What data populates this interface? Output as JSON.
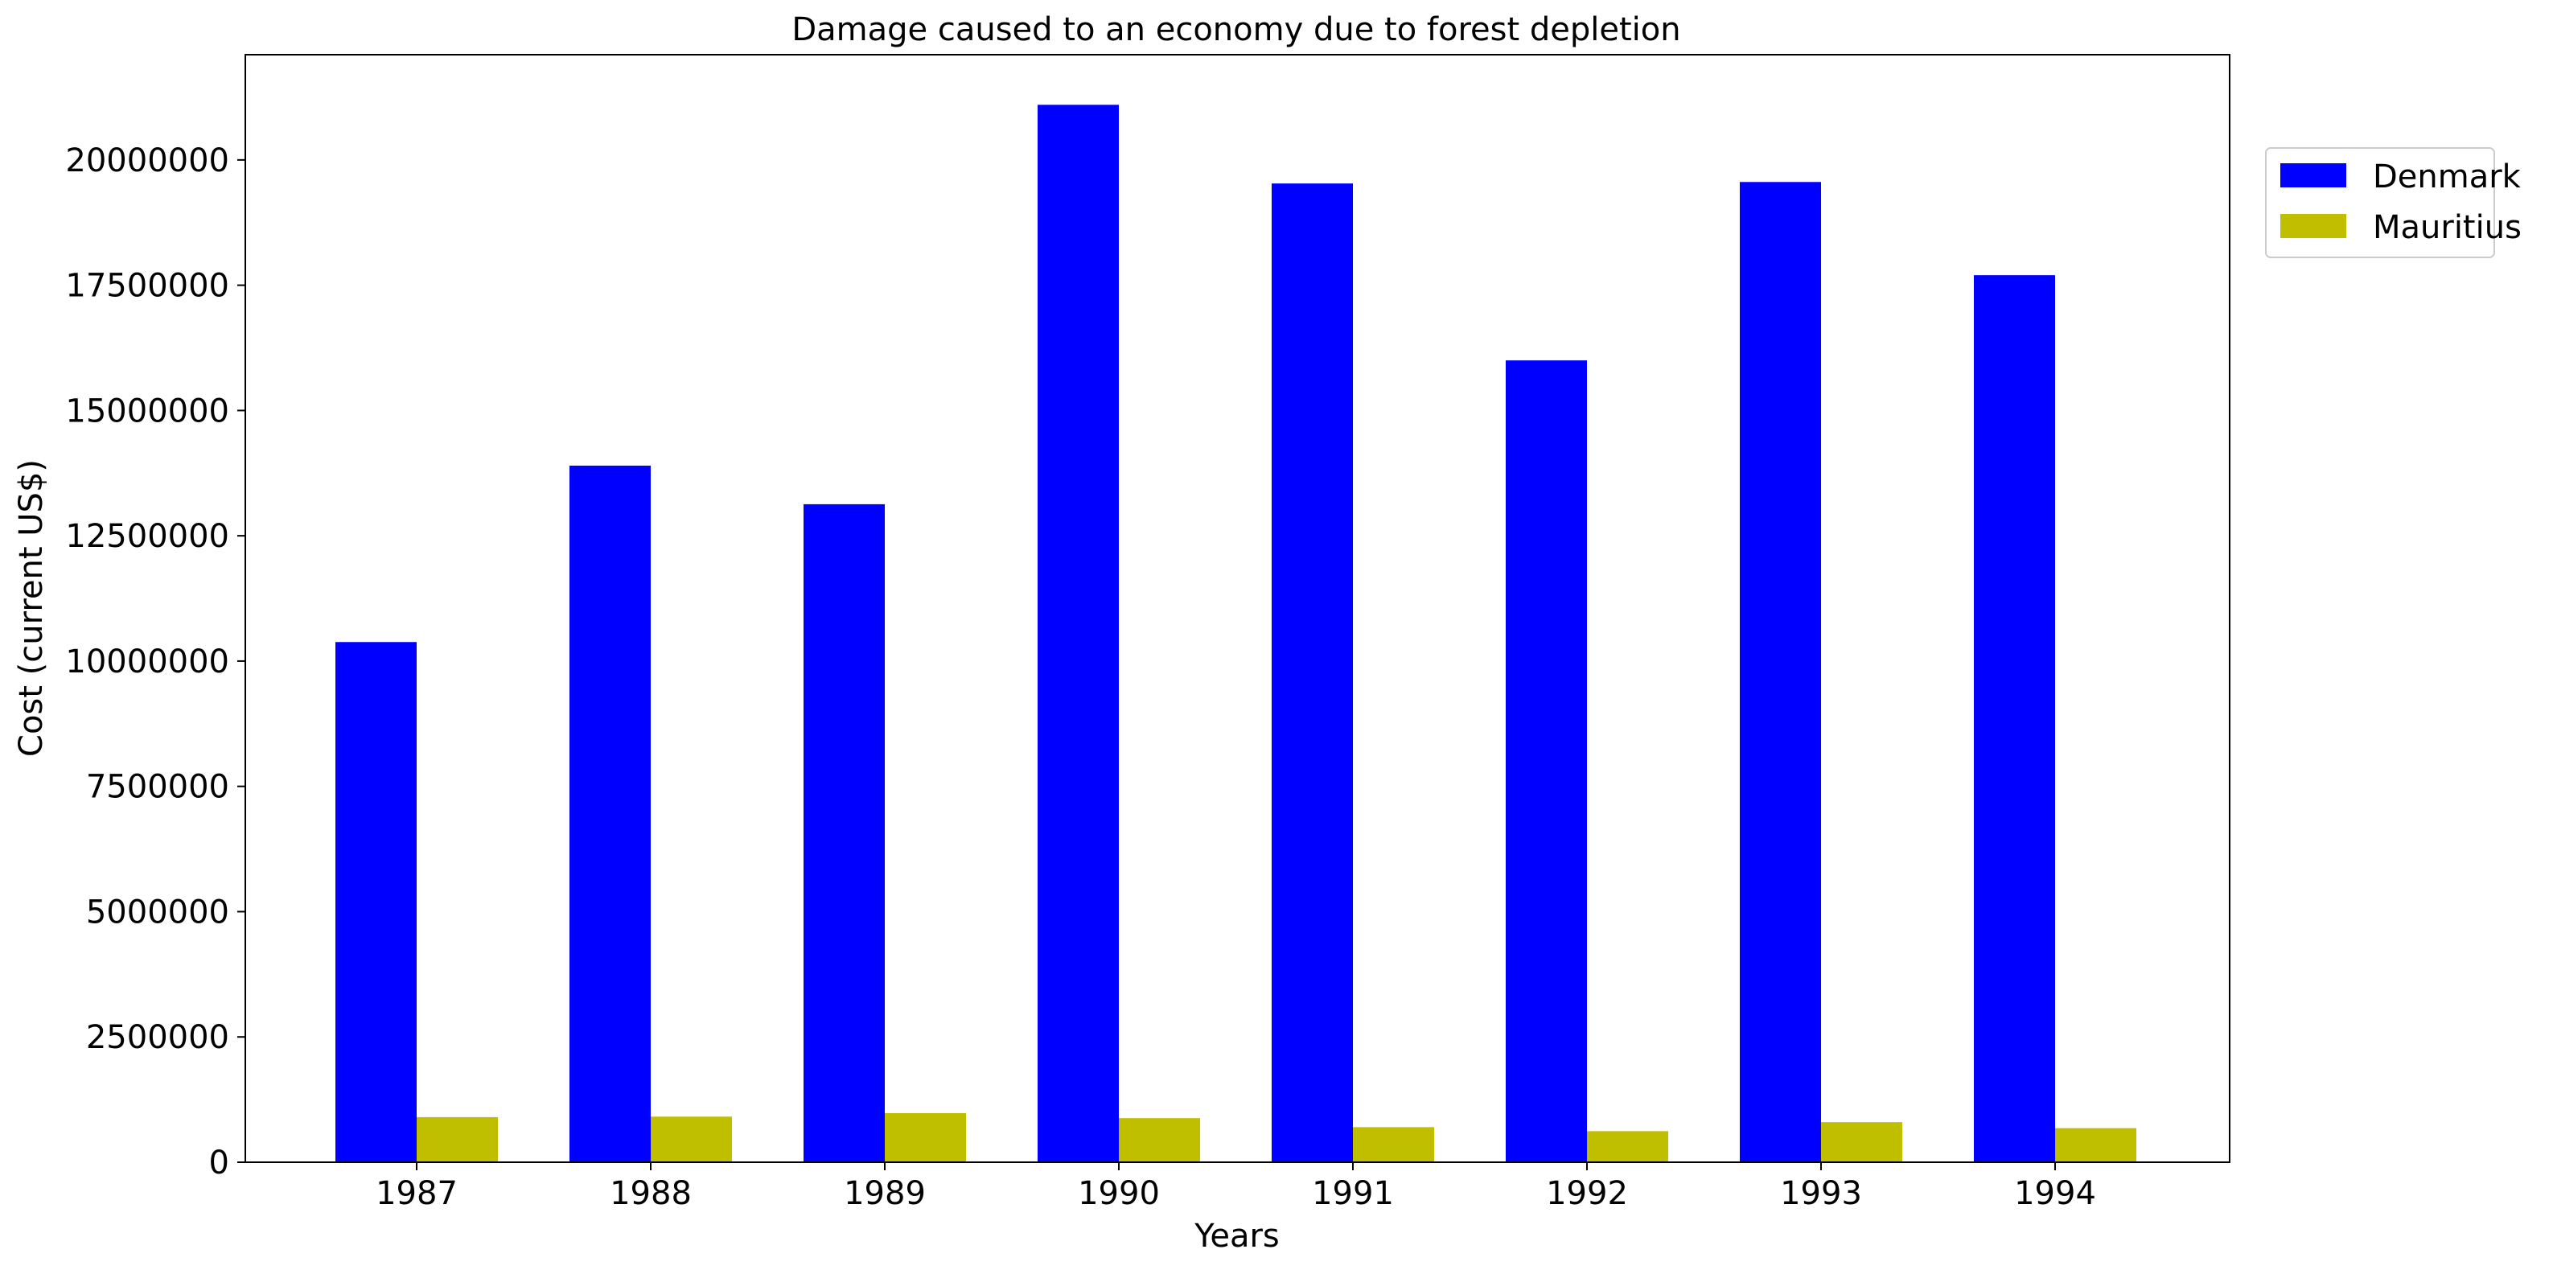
{
  "chart_data": {
    "type": "bar",
    "title": "Damage caused to an economy due to forest depletion",
    "xlabel": "Years",
    "ylabel": "Cost (current US$)",
    "categories": [
      "1987",
      "1988",
      "1989",
      "1990",
      "1991",
      "1992",
      "1993",
      "1994"
    ],
    "series": [
      {
        "name": "Denmark",
        "color": "#0000ff",
        "values": [
          10380000,
          13900000,
          13130000,
          21100000,
          19530000,
          16000000,
          19560000,
          17700000
        ]
      },
      {
        "name": "Mauritius",
        "color": "#bfbf00",
        "values": [
          900000,
          910000,
          980000,
          880000,
          700000,
          620000,
          800000,
          680000
        ]
      }
    ],
    "ylim": [
      0,
      22100000
    ],
    "yticks": [
      0,
      2500000,
      5000000,
      7500000,
      10000000,
      12500000,
      15000000,
      17500000,
      20000000
    ],
    "grid": false,
    "legend_position": "top-right, outside plot"
  }
}
